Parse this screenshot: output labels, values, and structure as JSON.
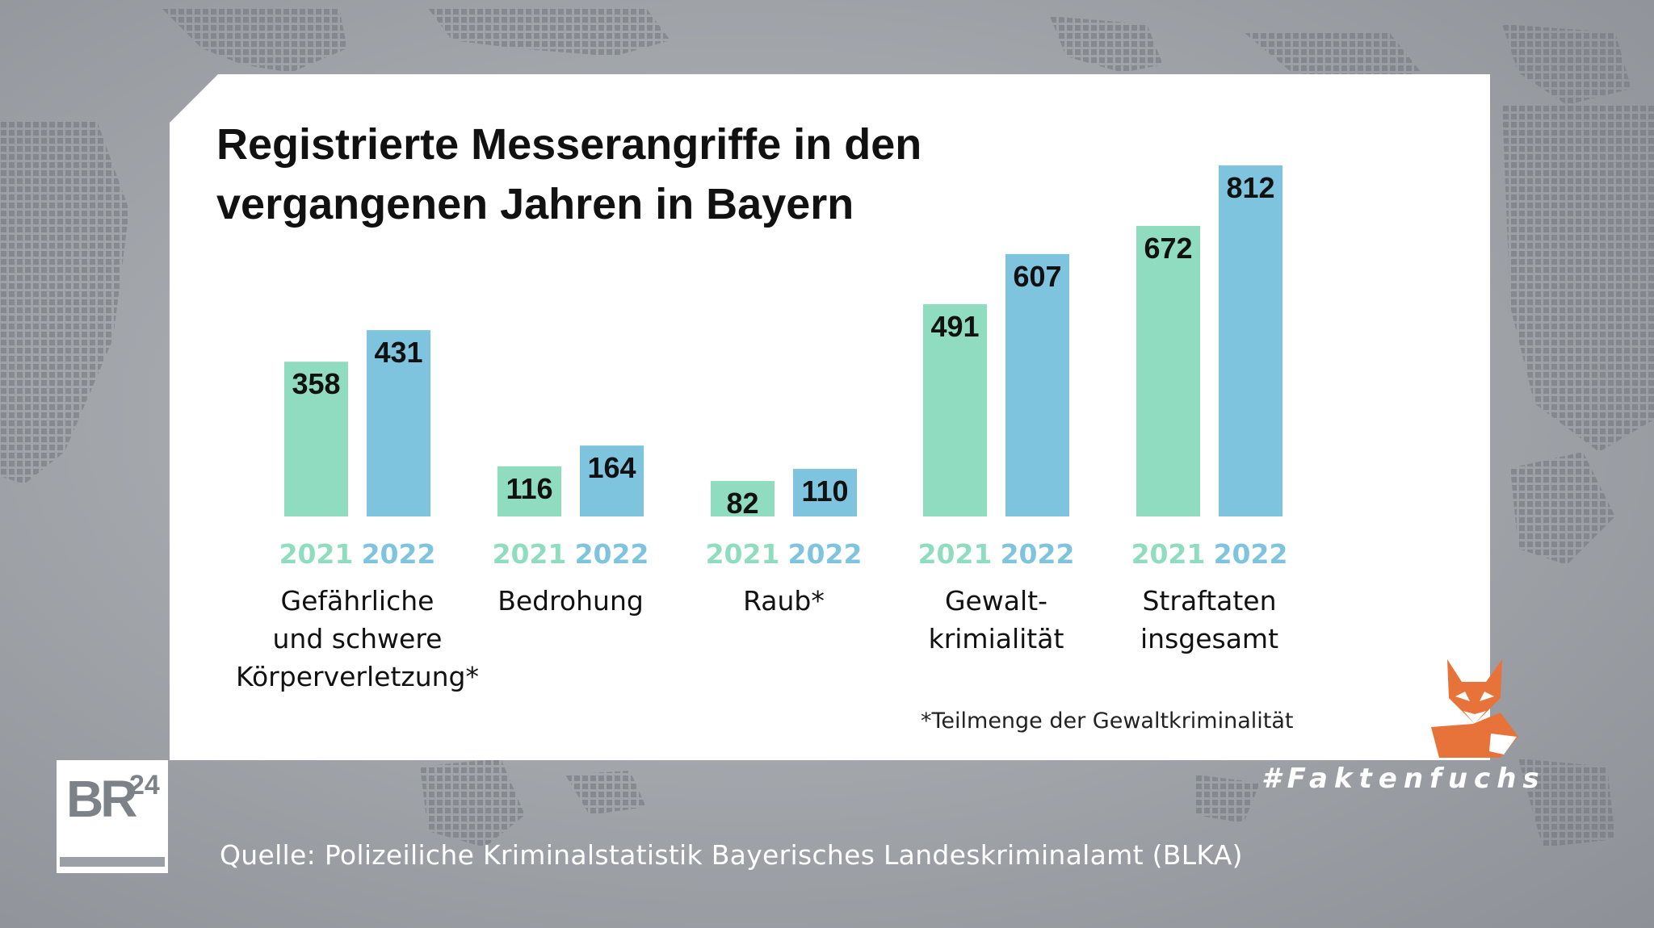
{
  "title_lines": [
    "Registrierte Messerangriffe in den",
    "vergangenen Jahren in Bayern"
  ],
  "footnote": "*Teilmenge der Gewaltkriminalität",
  "source": "Quelle: Polizeiliche Kriminalstatistik Bayerisches Landeskriminalamt (BLKA)",
  "logo": {
    "letters": "BR",
    "number": "24"
  },
  "hashtag": "#Faktenfuchs",
  "colors": {
    "year_2021": "#8fdcc1",
    "year_2022": "#7ec4de",
    "label_2021": "#8fdcc1",
    "label_2022": "#7ec4de",
    "fox": "#e8733a"
  },
  "icons": [
    "fox-icon",
    "br24-logo"
  ],
  "chart_data": {
    "type": "bar",
    "categories": [
      [
        "Gefährliche",
        "und schwere",
        "Körperverletzung*"
      ],
      [
        "Bedrohung"
      ],
      [
        "Raub*"
      ],
      [
        "Gewalt-",
        "krimialität"
      ],
      [
        "Straftaten",
        "insgesamt"
      ]
    ],
    "series": [
      {
        "name": "2021",
        "values": [
          358,
          116,
          82,
          491,
          672
        ]
      },
      {
        "name": "2022",
        "values": [
          431,
          164,
          110,
          607,
          812
        ]
      }
    ],
    "ylim": [
      0,
      812
    ],
    "grid": false,
    "legend": "none"
  }
}
